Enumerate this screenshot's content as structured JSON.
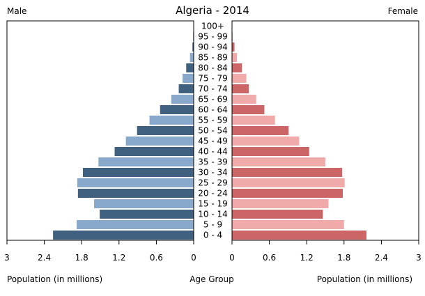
{
  "chart_data": {
    "type": "bar",
    "title": "Algeria - 2014",
    "left_label": "Male",
    "right_label": "Female",
    "xlabel_left": "Population (in millions)",
    "xlabel_center": "Age Group",
    "xlabel_right": "Population (in millions)",
    "xlim": [
      0,
      3
    ],
    "x_ticks": [
      0,
      0.6,
      1.2,
      1.8,
      2.4,
      3
    ],
    "x_tick_labels": [
      "0",
      "0.6",
      "1.2",
      "1.8",
      "2.4",
      "3"
    ],
    "categories": [
      "0 - 4",
      "5 - 9",
      "10 - 14",
      "15 - 19",
      "20 - 24",
      "25 - 29",
      "30 - 34",
      "35 - 39",
      "40 - 44",
      "45 - 49",
      "50 - 54",
      "55 - 59",
      "60 - 64",
      "65 - 69",
      "70 - 74",
      "75 - 79",
      "80 - 84",
      "85 - 89",
      "90 - 94",
      "95 - 99",
      "100+"
    ],
    "series": [
      {
        "name": "Male",
        "values": [
          2.26,
          1.88,
          1.51,
          1.6,
          1.86,
          1.87,
          1.78,
          1.53,
          1.27,
          1.09,
          0.91,
          0.71,
          0.54,
          0.36,
          0.24,
          0.18,
          0.12,
          0.06,
          0.02,
          0.01,
          0.0
        ],
        "colors": [
          "#406080",
          "#88a8cc"
        ]
      },
      {
        "name": "Female",
        "values": [
          2.16,
          1.8,
          1.46,
          1.55,
          1.78,
          1.81,
          1.77,
          1.5,
          1.24,
          1.08,
          0.91,
          0.69,
          0.52,
          0.39,
          0.27,
          0.23,
          0.16,
          0.08,
          0.04,
          0.01,
          0.0
        ],
        "colors": [
          "#cc6666",
          "#f0aaaa"
        ]
      }
    ],
    "grid": false
  }
}
